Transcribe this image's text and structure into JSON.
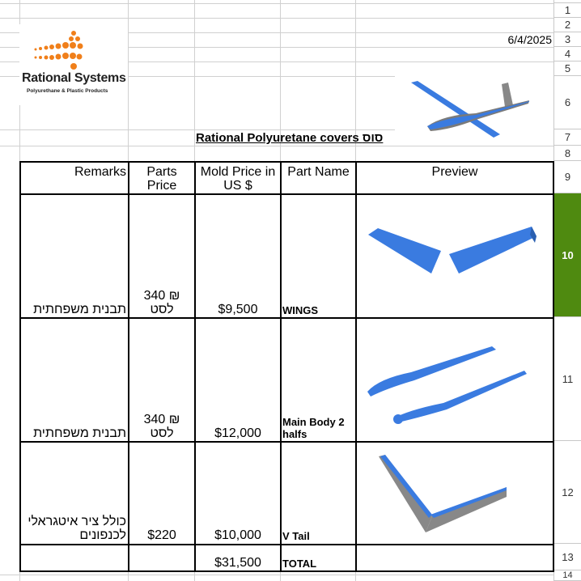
{
  "row_headers": [
    "1",
    "2",
    "3",
    "4",
    "5",
    "6",
    "7",
    "8",
    "9",
    "10",
    "11",
    "12",
    "13",
    "14"
  ],
  "selected_row": "10",
  "colors": {
    "selection": "#4f8a10",
    "logo_orange": "#f07f1a",
    "model_blue": "#3a7be0"
  },
  "logo": {
    "name": "Rational Systems",
    "tagline": "Polyurethane & Plastic Products"
  },
  "date": "6/4/2025",
  "title": "Rational Polyuretane covers סוס",
  "table": {
    "headers": {
      "remarks": "Remarks",
      "parts_price": "Parts Price",
      "mold_price": "Mold Price in US $",
      "part_name": "Part Name",
      "preview": "Preview"
    },
    "rows": [
      {
        "remarks": "תבנית משפחתית",
        "parts_price_1": "340 ₪",
        "parts_price_2": "לסט",
        "mold_price": "$9,500",
        "part_name": "WINGS",
        "preview": "wings-model-image"
      },
      {
        "remarks": "תבנית משפחתית",
        "parts_price_1": "340 ₪",
        "parts_price_2": "לסט",
        "mold_price": "$12,000",
        "part_name": "Main Body 2 halfs",
        "preview": "body-halves-model-image"
      },
      {
        "remarks_1": "כולל ציר איטגראלי",
        "remarks_2": "לכנפונים",
        "parts_price": "$220",
        "mold_price": "$10,000",
        "part_name": "V Tail",
        "preview": "v-tail-model-image"
      }
    ],
    "total": {
      "mold_price": "$31,500",
      "label": "TOTAL"
    }
  }
}
